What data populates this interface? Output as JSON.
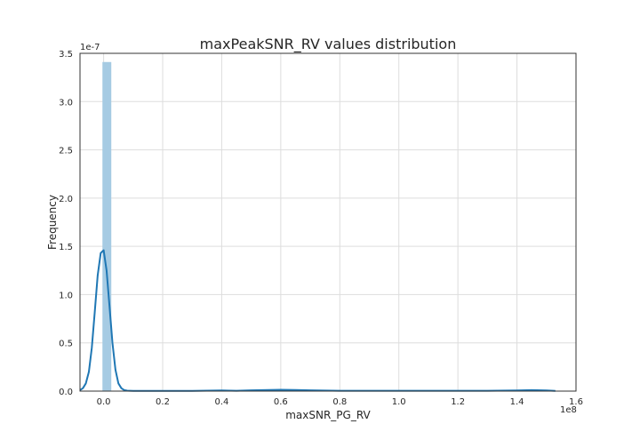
{
  "chart_data": {
    "type": "bar",
    "title": "maxPeakSNR_RV values distribution",
    "xlabel": "maxSNR_PG_RV",
    "ylabel": "Frequency",
    "x_offset_label": "1e8",
    "y_offset_label": "1e-7",
    "xlim": [
      -0.08,
      1.6
    ],
    "ylim": [
      0,
      3.5
    ],
    "xticks": [
      0.0,
      0.2,
      0.4,
      0.6,
      0.8,
      1.0,
      1.2,
      1.4,
      1.6
    ],
    "yticks": [
      0.0,
      0.5,
      1.0,
      1.5,
      2.0,
      2.5,
      3.0,
      3.5
    ],
    "xtick_labels": [
      "0.0",
      "0.2",
      "0.4",
      "0.6",
      "0.8",
      "1.0",
      "1.2",
      "1.4",
      "1.6"
    ],
    "ytick_labels": [
      "0.0",
      "0.5",
      "1.0",
      "1.5",
      "2.0",
      "2.5",
      "3.0",
      "3.5"
    ],
    "grid": true,
    "bar_color": "#a6cbe3",
    "line_color": "#1f77b4",
    "series": [
      {
        "type": "histogram",
        "bins": [
          {
            "x0": -0.004,
            "x1": 0.026,
            "value": 3.41
          }
        ]
      },
      {
        "type": "kde",
        "x": [
          -0.08,
          -0.07,
          -0.06,
          -0.05,
          -0.04,
          -0.03,
          -0.02,
          -0.01,
          0.0,
          0.01,
          0.02,
          0.03,
          0.04,
          0.05,
          0.06,
          0.07,
          0.08,
          0.1,
          0.2,
          0.3,
          0.4,
          0.45,
          0.5,
          0.6,
          0.65,
          0.7,
          0.8,
          0.9,
          1.0,
          1.1,
          1.2,
          1.3,
          1.4,
          1.45,
          1.5,
          1.53
        ],
        "y": [
          0.01,
          0.03,
          0.08,
          0.2,
          0.45,
          0.82,
          1.2,
          1.43,
          1.46,
          1.25,
          0.88,
          0.5,
          0.22,
          0.08,
          0.03,
          0.01,
          0.005,
          0.002,
          0.002,
          0.003,
          0.006,
          0.004,
          0.008,
          0.014,
          0.012,
          0.008,
          0.004,
          0.004,
          0.004,
          0.004,
          0.004,
          0.004,
          0.007,
          0.01,
          0.006,
          0.003
        ]
      }
    ]
  }
}
